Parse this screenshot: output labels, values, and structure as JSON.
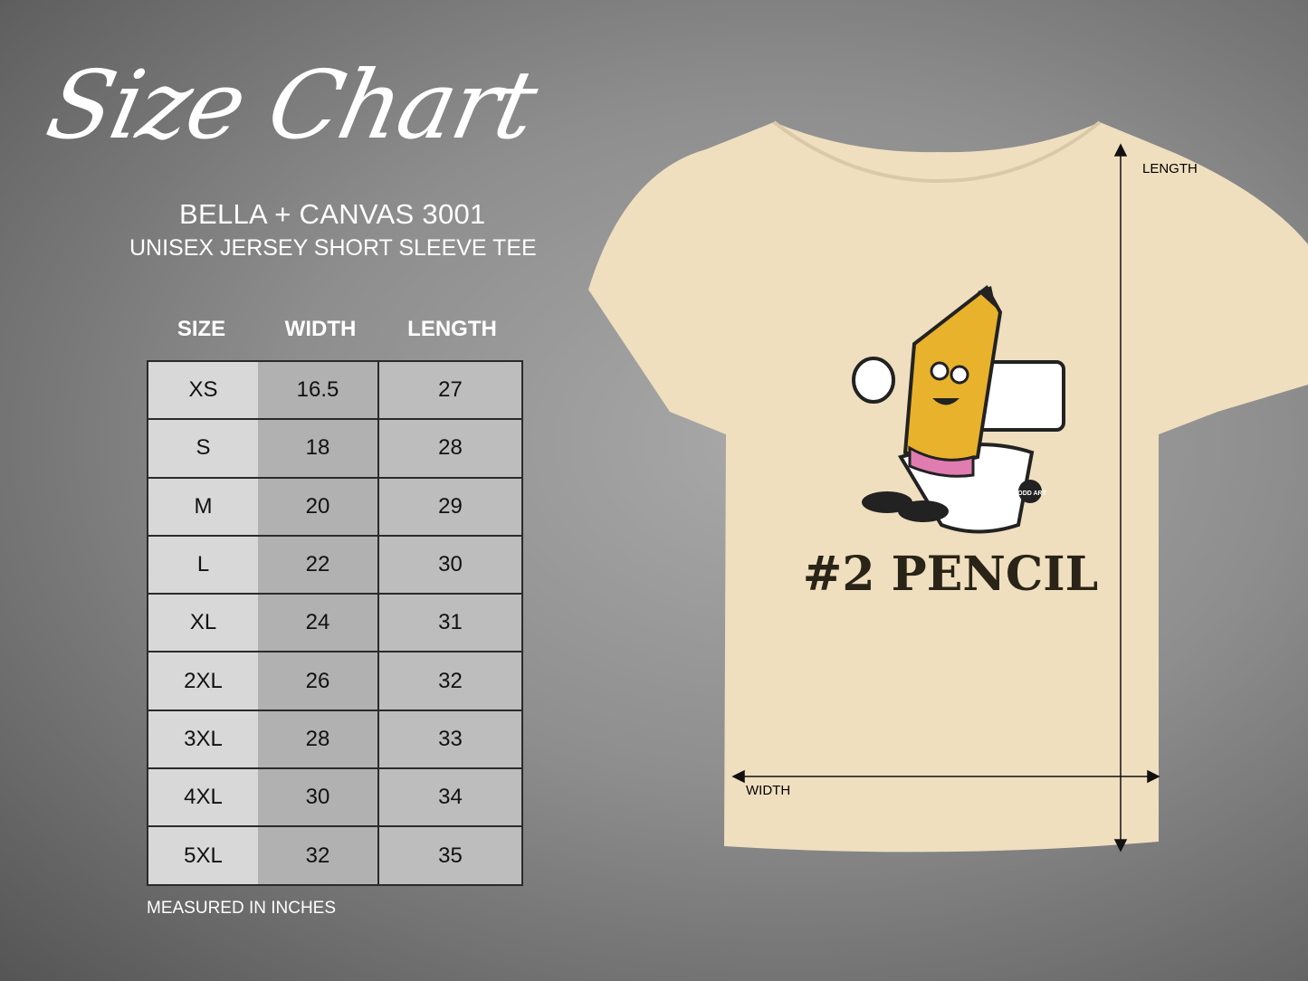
{
  "title": "Size Chart",
  "brand": "BELLA + CANVAS 3001",
  "subtitle": "UNISEX JERSEY SHORT SLEEVE TEE",
  "table": {
    "headers": [
      "SIZE",
      "WIDTH",
      "LENGTH"
    ],
    "rows": [
      [
        "XS",
        "16.5",
        "27"
      ],
      [
        "S",
        "18",
        "28"
      ],
      [
        "M",
        "20",
        "29"
      ],
      [
        "L",
        "22",
        "30"
      ],
      [
        "XL",
        "24",
        "31"
      ],
      [
        "2XL",
        "26",
        "32"
      ],
      [
        "3XL",
        "28",
        "33"
      ],
      [
        "4XL",
        "30",
        "34"
      ],
      [
        "5XL",
        "32",
        "35"
      ]
    ]
  },
  "note": "MEASURED IN INCHES",
  "shirt": {
    "color": "#efdfbf",
    "graphic_text": "#2 PENCIL",
    "logo_text": "TODD ART",
    "length_label": "LENGTH",
    "width_label": "WIDTH"
  }
}
